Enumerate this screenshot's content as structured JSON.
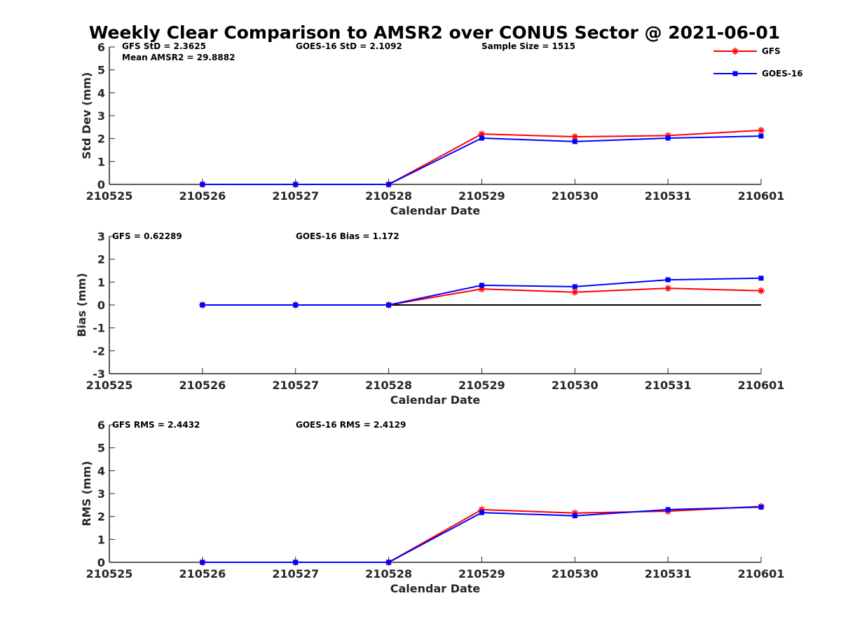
{
  "title": "Weekly Clear Comparison to AMSR2 over CONUS Sector @ 2021-06-01",
  "colors": {
    "GFS": "#ff0000",
    "GOES-16": "#0000ff",
    "axis": "#262626",
    "zero_line": "#000000"
  },
  "legend": {
    "placement": "top-right",
    "entries": [
      {
        "name": "GFS",
        "color": "#ff0000",
        "marker": "asterisk"
      },
      {
        "name": "GOES-16",
        "color": "#0000ff",
        "marker": "square"
      }
    ]
  },
  "chart_data": [
    {
      "type": "line",
      "id": "stddev",
      "xlabel": "Calendar Date",
      "ylabel": "Std Dev (mm)",
      "x": [
        "210525",
        "210526",
        "210527",
        "210528",
        "210529",
        "210530",
        "210531",
        "210601"
      ],
      "ylim": [
        0,
        6
      ],
      "yticks": [
        0,
        1,
        2,
        3,
        4,
        5,
        6
      ],
      "grid": false,
      "zero_line": false,
      "annotations": [
        "GFS StD = 2.3625",
        "GOES-16 StD = 2.1092",
        "Sample Size = 1515",
        "Mean AMSR2 = 29.8882"
      ],
      "series": [
        {
          "name": "GFS",
          "color": "#ff0000",
          "marker": "asterisk",
          "values": [
            null,
            0,
            0,
            0,
            2.2,
            2.08,
            2.13,
            2.36
          ]
        },
        {
          "name": "GOES-16",
          "color": "#0000ff",
          "marker": "square",
          "values": [
            null,
            0,
            0,
            0,
            2.02,
            1.87,
            2.02,
            2.11
          ]
        }
      ]
    },
    {
      "type": "line",
      "id": "bias",
      "xlabel": "Calendar Date",
      "ylabel": "Bias (mm)",
      "x": [
        "210525",
        "210526",
        "210527",
        "210528",
        "210529",
        "210530",
        "210531",
        "210601"
      ],
      "ylim": [
        -3,
        3
      ],
      "yticks": [
        -3,
        -2,
        -1,
        0,
        1,
        2,
        3
      ],
      "grid": false,
      "zero_line": true,
      "annotations": [
        "GFS = 0.62289",
        "GOES-16 Bias  = 1.172"
      ],
      "series": [
        {
          "name": "GFS",
          "color": "#ff0000",
          "marker": "asterisk",
          "values": [
            null,
            0,
            0,
            0,
            0.7,
            0.56,
            0.73,
            0.62
          ]
        },
        {
          "name": "GOES-16",
          "color": "#0000ff",
          "marker": "square",
          "values": [
            null,
            0,
            0,
            0,
            0.86,
            0.8,
            1.1,
            1.17
          ]
        }
      ]
    },
    {
      "type": "line",
      "id": "rms",
      "xlabel": "Calendar Date",
      "ylabel": "RMS (mm)",
      "x": [
        "210525",
        "210526",
        "210527",
        "210528",
        "210529",
        "210530",
        "210531",
        "210601"
      ],
      "ylim": [
        0,
        6
      ],
      "yticks": [
        0,
        1,
        2,
        3,
        4,
        5,
        6
      ],
      "grid": false,
      "zero_line": false,
      "annotations": [
        "GFS RMS = 2.4432",
        "GOES-16 RMS = 2.4129"
      ],
      "series": [
        {
          "name": "GFS",
          "color": "#ff0000",
          "marker": "asterisk",
          "values": [
            null,
            0,
            0,
            0,
            2.3,
            2.15,
            2.23,
            2.44
          ]
        },
        {
          "name": "GOES-16",
          "color": "#0000ff",
          "marker": "square",
          "values": [
            null,
            0,
            0,
            0,
            2.17,
            2.03,
            2.3,
            2.41
          ]
        }
      ]
    }
  ]
}
